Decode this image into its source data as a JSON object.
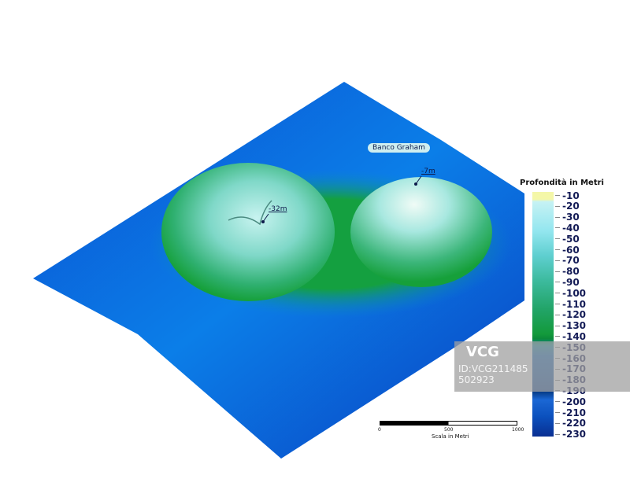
{
  "map": {
    "place_label": "Banco Graham",
    "peaks": [
      {
        "label": "-7m"
      },
      {
        "label": "-32m"
      }
    ]
  },
  "legend": {
    "title": "Profondità in Metri",
    "ticks": [
      "-10",
      "-20",
      "-30",
      "-40",
      "-50",
      "-60",
      "-70",
      "-80",
      "-90",
      "-100",
      "-110",
      "-120",
      "-130",
      "-140",
      "-150",
      "-160",
      "-170",
      "-180",
      "-190",
      "-200",
      "-210",
      "-220",
      "-230"
    ],
    "colors": {
      "shallow": "#f4f7a8",
      "mid": "#139a3b",
      "deep": "#0a2f92"
    }
  },
  "scale": {
    "title": "Scala in Metri",
    "labels": [
      "0",
      "500",
      "1000"
    ]
  },
  "watermark": {
    "logo": "VCG",
    "id": "ID:VCG211485502923"
  }
}
